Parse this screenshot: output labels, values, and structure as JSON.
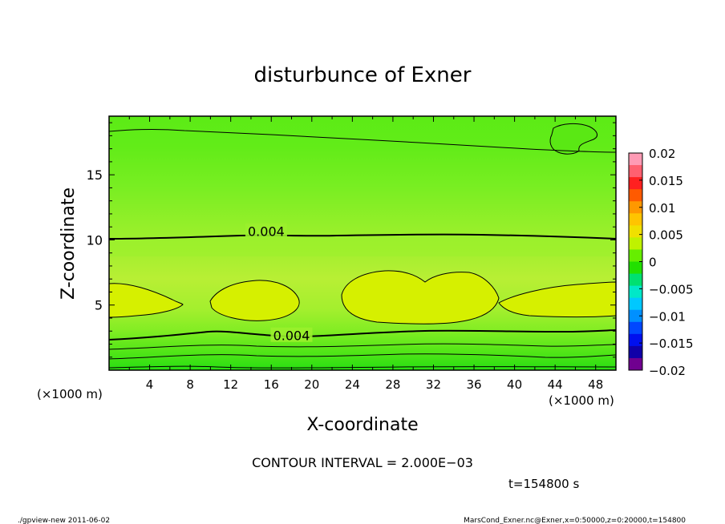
{
  "chart_data": {
    "type": "heatmap",
    "title": "disturbunce of Exner",
    "xlabel": "X-coordinate",
    "ylabel": "Z-coordinate",
    "x_unit_left": "(×1000 m)",
    "x_unit_right": "(×1000 m)",
    "xlim": [
      0,
      50
    ],
    "ylim": [
      0,
      19.5
    ],
    "x_ticks": [
      4,
      8,
      12,
      16,
      20,
      24,
      28,
      32,
      36,
      40,
      44,
      48
    ],
    "x_tick_labels": [
      "4",
      "8",
      "12",
      "16",
      "20",
      "24",
      "28",
      "32",
      "36",
      "40",
      "44",
      "48"
    ],
    "y_ticks": [
      5,
      10,
      15
    ],
    "y_tick_labels": [
      "5",
      "10",
      "15"
    ],
    "contour_labels": [
      {
        "text": "0.004",
        "x": 15.5,
        "y": 10.6
      },
      {
        "text": "0.004",
        "x": 18,
        "y": 2.6
      }
    ],
    "colorbar": {
      "min": -0.02,
      "max": 0.02,
      "tick_values": [
        0.02,
        0.015,
        0.01,
        0.005,
        0,
        -0.005,
        -0.01,
        -0.015,
        -0.02
      ],
      "tick_labels": [
        "0.02",
        "0.015",
        "0.01",
        "0.005",
        "0",
        "−0.005",
        "−0.01",
        "−0.015",
        "−0.02"
      ],
      "colors": [
        "#ff9bb5",
        "#ff6070",
        "#ff2020",
        "#ff5a00",
        "#ff9800",
        "#ffc400",
        "#f0e000",
        "#bff200",
        "#66ee00",
        "#22e000",
        "#00e070",
        "#00e8c8",
        "#00c8ff",
        "#0090ff",
        "#0048ff",
        "#0010ee",
        "#1000a8",
        "#700090"
      ]
    },
    "field_summary": {
      "background_value_range": [
        0.0,
        0.005
      ],
      "high_regions_value_range": [
        0.006,
        0.008
      ],
      "high_regions_z_range": [
        4.2,
        7.0
      ]
    },
    "contour_interval_text": "CONTOUR INTERVAL = 2.000E−03",
    "time_text": "t=154800 s",
    "footer_left": "./gpview-new   2011-06-02",
    "footer_right": "MarsCond_Exner.nc@Exner,x=0:50000,z=0:20000,t=154800"
  }
}
